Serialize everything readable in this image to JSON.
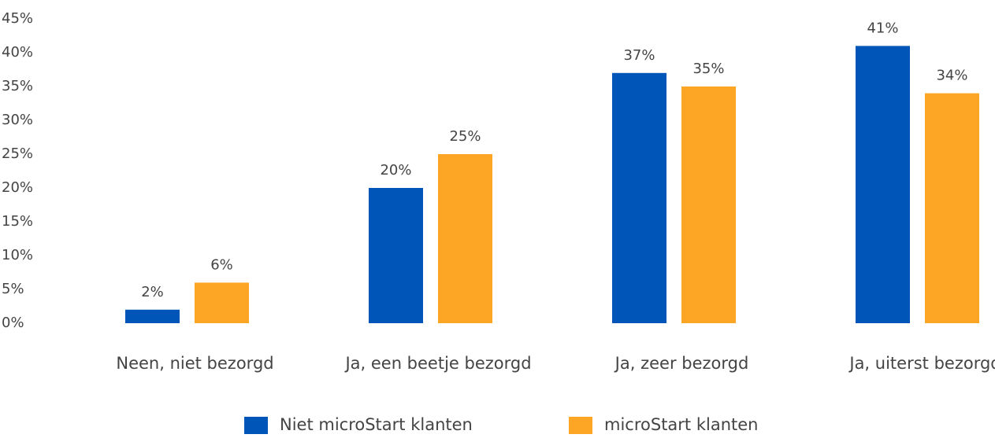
{
  "chart_data": {
    "type": "bar",
    "categories": [
      "Neen, niet bezorgd",
      "Ja, een beetje bezorgd",
      "Ja, zeer bezorgd",
      "Ja, uiterst bezorgd"
    ],
    "series": [
      {
        "name": "Niet microStart klanten",
        "color": "#0055b8",
        "values": [
          2,
          20,
          37,
          41
        ],
        "value_labels": [
          "2%",
          "20%",
          "37%",
          "41%"
        ]
      },
      {
        "name": "microStart klanten",
        "color": "#fda625",
        "values": [
          6,
          25,
          35,
          34
        ],
        "value_labels": [
          "6%",
          "25%",
          "35%",
          "34%"
        ]
      }
    ],
    "ylim": [
      0,
      45
    ],
    "yticks": [
      {
        "value": 0,
        "label": "0%"
      },
      {
        "value": 5,
        "label": "5%"
      },
      {
        "value": 10,
        "label": "10%"
      },
      {
        "value": 15,
        "label": "15%"
      },
      {
        "value": 20,
        "label": "20%"
      },
      {
        "value": 25,
        "label": "25%"
      },
      {
        "value": 30,
        "label": "30%"
      },
      {
        "value": 35,
        "label": "35%"
      },
      {
        "value": 40,
        "label": "40%"
      },
      {
        "value": 45,
        "label": "45%"
      }
    ],
    "grid": false,
    "legend": "bottom"
  }
}
